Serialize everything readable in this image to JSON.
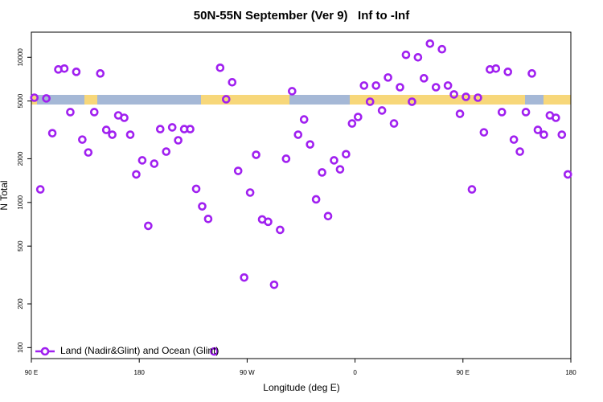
{
  "chart_data": {
    "type": "scatter",
    "title": "50N-55N September (Ver 9)   Inf to -Inf",
    "x_label": "Longitude (deg E)",
    "y_label": "N Total",
    "log_y": true,
    "grid": false,
    "legend": "bottom-left",
    "xlim": [
      90,
      540
    ],
    "xticks": [
      {
        "value": 90,
        "label": "90 E"
      },
      180,
      {
        "value": 270,
        "label": "90 W"
      },
      {
        "value": 360,
        "label": "0"
      },
      {
        "value": 450,
        "label": "90 E"
      },
      {
        "value": 540,
        "label": "180"
      }
    ],
    "ylim": [
      84,
      14900
    ],
    "yticks": [
      100,
      200,
      500,
      1000,
      2000,
      5000,
      10000
    ],
    "series": [
      {
        "name": "Land (Nadir&Glint) and Ocean (Glint)",
        "color": "#a020f0",
        "x": [
          92.5,
          97.5,
          102.5,
          107.5,
          112.5,
          117.5,
          122.5,
          127.5,
          132.5,
          137.5,
          142.5,
          147.5,
          152.5,
          157.5,
          162.5,
          167.5,
          172.5,
          177.5,
          182.5,
          187.5,
          192.5,
          197.5,
          202.5,
          207.5,
          212.5,
          217.5,
          222.5,
          227.5,
          232.5,
          237.5,
          242.5,
          247.5,
          252.5,
          257.5,
          262.5,
          267.5,
          272.5,
          277.5,
          282.5,
          287.5,
          292.5,
          297.5,
          302.5,
          307.5,
          312.5,
          317.5,
          322.5,
          327.5,
          332.5,
          337.5,
          342.5,
          347.5,
          352.5,
          357.5,
          362.5,
          367.5,
          372.5,
          377.5,
          382.5,
          387.5,
          392.5,
          397.5,
          402.5,
          407.5,
          412.5,
          417.5,
          422.5,
          427.5,
          432.5,
          437.5,
          442.5,
          447.5,
          452.5,
          457.5,
          462.5,
          467.5,
          472.5,
          477.5,
          482.5,
          487.5,
          492.5,
          497.5,
          502.5,
          507.5,
          512.5,
          517.5,
          522.5,
          527.5,
          532.5,
          537.5
        ],
        "values": [
          5270,
          1230,
          5210,
          3000,
          8250,
          8360,
          4190,
          7940,
          2710,
          2210,
          4190,
          7740,
          3160,
          2930,
          3980,
          3830,
          2930,
          1560,
          1950,
          690,
          1850,
          3200,
          2240,
          3290,
          2680,
          3200,
          3200,
          1240,
          940,
          770,
          94,
          8470,
          5140,
          6730,
          1650,
          304,
          1170,
          2130,
          764,
          736,
          271,
          647,
          2000,
          5840,
          2930,
          3730,
          2510,
          1050,
          1610,
          805,
          1950,
          1690,
          2150,
          3500,
          3880,
          6390,
          4940,
          6390,
          4300,
          7260,
          3500,
          6220,
          10400,
          4940,
          10000,
          7170,
          12420,
          6220,
          11370,
          6390,
          5550,
          4080,
          5340,
          1230,
          5270,
          3040,
          8250,
          8360,
          4190,
          7940,
          2710,
          2240,
          4190,
          7740,
          3160,
          2930,
          3980,
          3830,
          2930,
          1560
        ]
      }
    ]
  }
}
